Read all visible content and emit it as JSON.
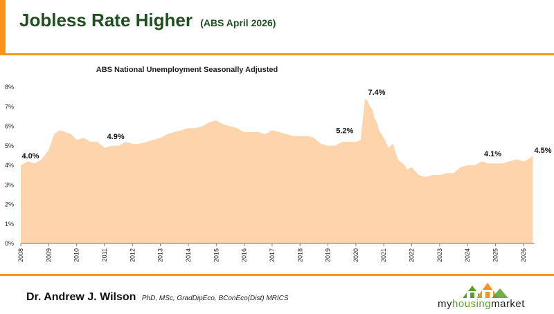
{
  "header": {
    "title": "Jobless Rate Higher",
    "subtitle": "(ABS April 2026)"
  },
  "footer": {
    "author": "Dr. Andrew J. Wilson",
    "credentials": "PhD, MSc, GradDipEco, BConEco(Dist) MRICS",
    "logo_text_a": "my",
    "logo_text_b": "housing",
    "logo_text_c": "market",
    "logo_name": "house-logo-icon"
  },
  "chart_data": {
    "type": "area",
    "title": "ABS National Unemployment Seasonally Adjusted",
    "xlabel": "",
    "ylabel": "",
    "ylim": [
      0,
      8
    ],
    "xlim": [
      2008,
      2026.4
    ],
    "grid": false,
    "y_ticks": [
      "0%",
      "1%",
      "2%",
      "3%",
      "4%",
      "5%",
      "6%",
      "7%",
      "8%"
    ],
    "x_ticks": [
      "2008",
      "2009",
      "2010",
      "2011",
      "2012",
      "2013",
      "2014",
      "2015",
      "2016",
      "2017",
      "2018",
      "2019",
      "2020",
      "2021",
      "2022",
      "2023",
      "2024",
      "2025",
      "2026"
    ],
    "fill_color": "#fdd4ac",
    "series": [
      {
        "x": [
          2008.0,
          2008.25,
          2008.5,
          2008.75,
          2009.0,
          2009.2,
          2009.4,
          2009.6,
          2009.8,
          2010.0,
          2010.25,
          2010.5,
          2010.75,
          2011.0,
          2011.25,
          2011.5,
          2011.75,
          2012.0,
          2012.25,
          2012.5,
          2012.75,
          2013.0,
          2013.25,
          2013.5,
          2013.75,
          2014.0,
          2014.25,
          2014.5,
          2014.75,
          2015.0,
          2015.25,
          2015.5,
          2015.75,
          2016.0,
          2016.25,
          2016.5,
          2016.75,
          2017.0,
          2017.25,
          2017.5,
          2017.75,
          2018.0,
          2018.25,
          2018.5,
          2018.75,
          2019.0,
          2019.25,
          2019.5,
          2019.75,
          2020.0,
          2020.17,
          2020.25,
          2020.33,
          2020.42,
          2020.5,
          2020.58,
          2020.67,
          2020.75,
          2020.83,
          2021.0,
          2021.17,
          2021.33,
          2021.5,
          2021.67,
          2021.75,
          2021.83,
          2022.0,
          2022.25,
          2022.5,
          2022.75,
          2023.0,
          2023.25,
          2023.5,
          2023.75,
          2024.0,
          2024.25,
          2024.5,
          2024.75,
          2025.0,
          2025.25,
          2025.5,
          2025.75,
          2026.0,
          2026.17,
          2026.33
        ],
        "values": [
          4.0,
          4.2,
          4.1,
          4.3,
          4.8,
          5.6,
          5.8,
          5.7,
          5.6,
          5.3,
          5.4,
          5.2,
          5.2,
          4.9,
          5.0,
          5.0,
          5.2,
          5.1,
          5.1,
          5.2,
          5.3,
          5.4,
          5.6,
          5.7,
          5.8,
          5.9,
          5.9,
          6.0,
          6.2,
          6.3,
          6.1,
          6.0,
          5.9,
          5.7,
          5.7,
          5.7,
          5.6,
          5.8,
          5.7,
          5.6,
          5.5,
          5.5,
          5.5,
          5.4,
          5.1,
          5.0,
          5.0,
          5.2,
          5.2,
          5.2,
          5.3,
          6.4,
          7.4,
          7.3,
          7.0,
          6.9,
          6.4,
          6.2,
          5.8,
          5.4,
          4.9,
          5.1,
          4.3,
          4.1,
          4.0,
          3.8,
          3.9,
          3.5,
          3.4,
          3.5,
          3.5,
          3.6,
          3.6,
          3.9,
          4.0,
          4.0,
          4.2,
          4.1,
          4.1,
          4.1,
          4.2,
          4.3,
          4.2,
          4.3,
          4.5
        ]
      }
    ],
    "annotations": [
      {
        "text": "4.0%",
        "x": 2008.0,
        "y": 4.0
      },
      {
        "text": "4.9%",
        "x": 2011.4,
        "y": 5.0
      },
      {
        "text": "5.2%",
        "x": 2019.6,
        "y": 5.3
      },
      {
        "text": "7.4%",
        "x": 2020.4,
        "y": 7.4
      },
      {
        "text": "4.1%",
        "x": 2024.9,
        "y": 4.1
      },
      {
        "text": "4.5%",
        "x": 2026.35,
        "y": 4.5
      }
    ]
  }
}
